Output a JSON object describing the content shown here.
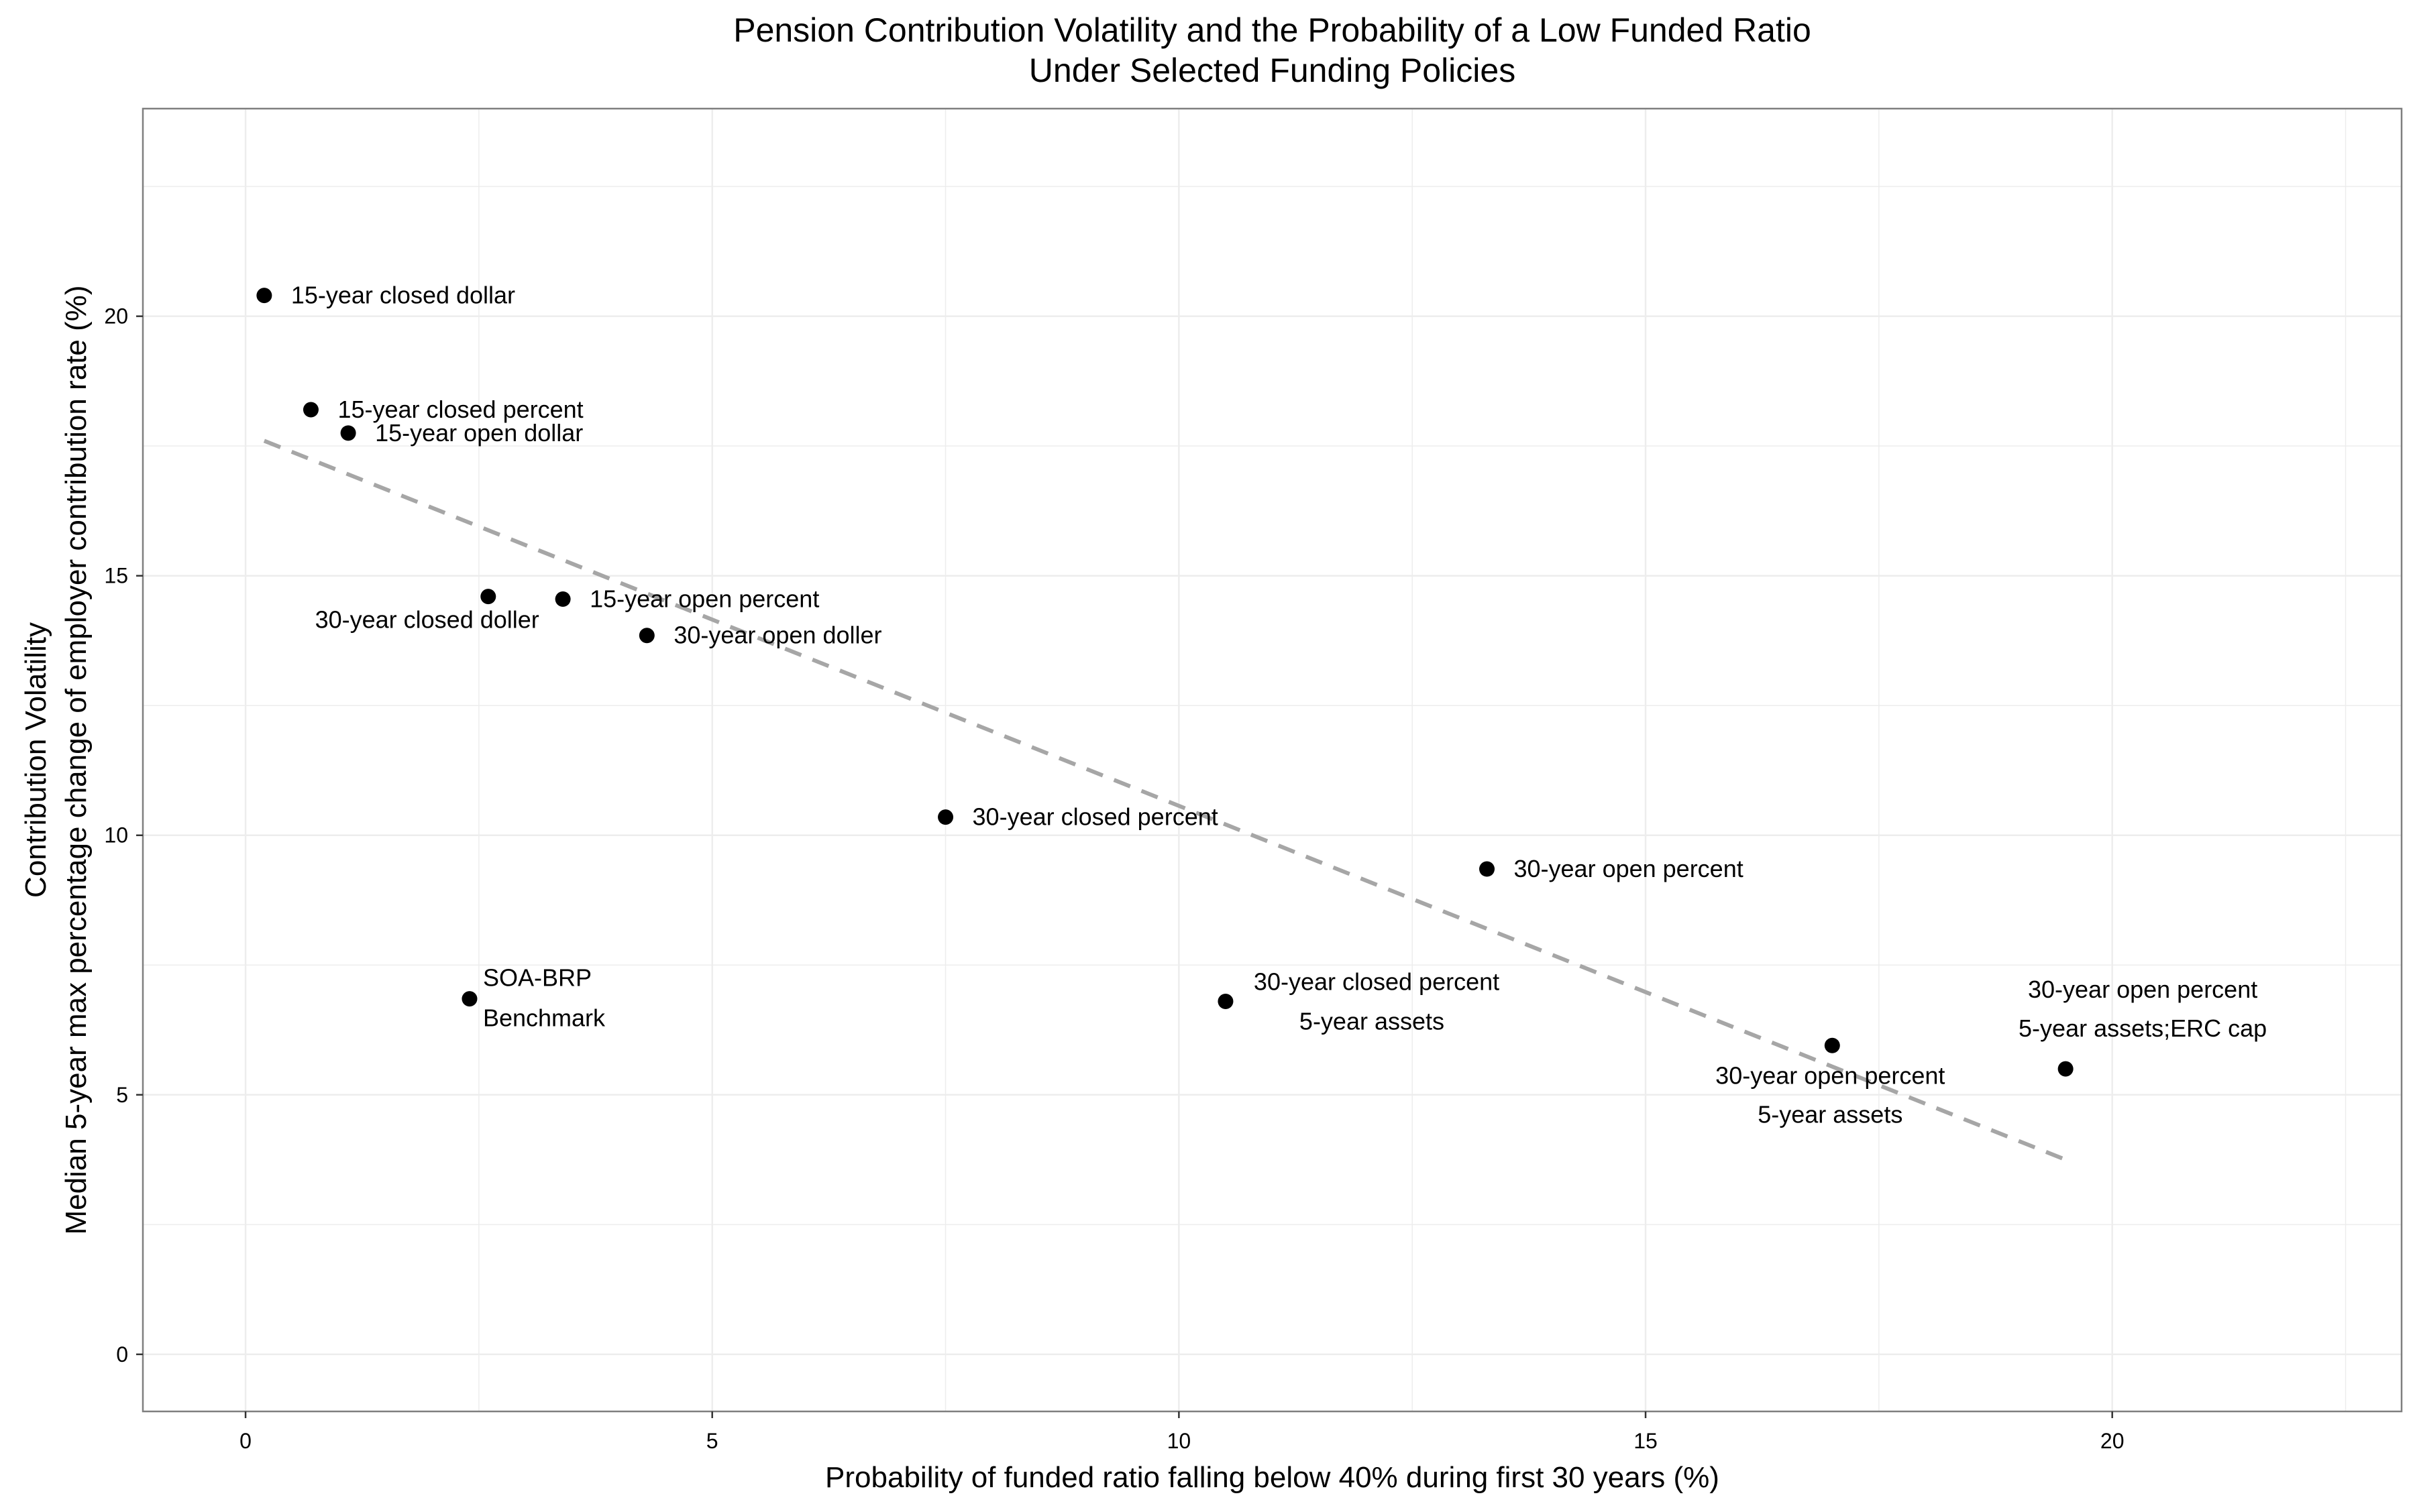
{
  "chart_data": {
    "type": "scatter",
    "title": [
      "Pension Contribution Volatility and the Probability of a Low Funded Ratio",
      "Under Selected Funding Policies"
    ],
    "xlabel": "Probability of funded ratio falling below 40% during first 30 years (%)",
    "ylabel": [
      "Contribution Volatility",
      "Median 5-year max percentage change of employer contribution rate (%)"
    ],
    "xlim": [
      -1.1,
      23.1
    ],
    "ylim": [
      -1.1,
      24.0
    ],
    "x_ticks": [
      0,
      5,
      10,
      15,
      20
    ],
    "y_ticks": [
      0,
      5,
      10,
      15,
      20
    ],
    "grid": true,
    "points": [
      {
        "x": 0.2,
        "y": 20.4,
        "label": [
          "15-year closed dollar"
        ],
        "label_pos": "right"
      },
      {
        "x": 0.7,
        "y": 18.2,
        "label": [
          "15-year closed percent"
        ],
        "label_pos": "right"
      },
      {
        "x": 1.1,
        "y": 17.75,
        "label": [
          "15-year open dollar"
        ],
        "label_pos": "right"
      },
      {
        "x": 2.6,
        "y": 14.6,
        "label": [
          "30-year closed doller"
        ],
        "label_pos": "below-left"
      },
      {
        "x": 3.4,
        "y": 14.55,
        "label": [
          "15-year open percent"
        ],
        "label_pos": "right"
      },
      {
        "x": 4.3,
        "y": 13.85,
        "label": [
          "30-year open doller"
        ],
        "label_pos": "right"
      },
      {
        "x": 7.5,
        "y": 10.35,
        "label": [
          "30-year closed percent"
        ],
        "label_pos": "right"
      },
      {
        "x": 13.3,
        "y": 9.35,
        "label": [
          "30-year open percent"
        ],
        "label_pos": "right"
      },
      {
        "x": 2.4,
        "y": 6.85,
        "label": [
          "SOA-BRP",
          "Benchmark"
        ],
        "label_pos": "right-stack"
      },
      {
        "x": 10.5,
        "y": 6.8,
        "label": [
          "30-year closed percent",
          "5-year assets"
        ],
        "label_pos": "right-stack"
      },
      {
        "x": 17.0,
        "y": 5.95,
        "label": [
          "30-year open percent",
          "5-year assets"
        ],
        "label_pos": "below"
      },
      {
        "x": 19.5,
        "y": 5.5,
        "label": [
          "30-year open percent",
          "5-year assets;ERC cap"
        ],
        "label_pos": "above"
      }
    ],
    "trend_line": {
      "style": "dashed",
      "x": [
        0.2,
        19.5
      ],
      "y": [
        17.6,
        3.75
      ]
    },
    "colors": {
      "point": "#000000",
      "trend": "#a6a6a6",
      "grid": "#ededed",
      "panel_border": "#7f7f7f"
    }
  }
}
